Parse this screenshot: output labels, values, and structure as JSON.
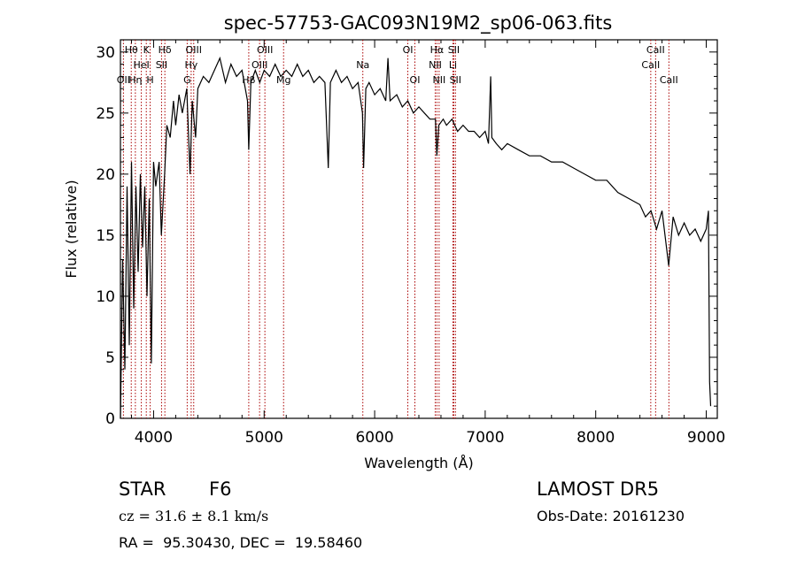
{
  "chart_data": {
    "type": "line",
    "title": "spec-57753-GAC093N19M2_sp06-063.fits",
    "xlabel": "Wavelength (Å)",
    "ylabel": "Flux (relative)",
    "xlim": [
      3700,
      9100
    ],
    "ylim": [
      0,
      31
    ],
    "xticks": [
      4000,
      5000,
      6000,
      7000,
      8000,
      9000
    ],
    "yticks": [
      0,
      5,
      10,
      15,
      20,
      25,
      30
    ],
    "series": [
      {
        "points": [
          [
            3700,
            0
          ],
          [
            3720,
            13
          ],
          [
            3740,
            4
          ],
          [
            3760,
            19
          ],
          [
            3780,
            6
          ],
          [
            3800,
            21
          ],
          [
            3820,
            9
          ],
          [
            3840,
            19
          ],
          [
            3860,
            12
          ],
          [
            3880,
            20
          ],
          [
            3900,
            14
          ],
          [
            3920,
            19
          ],
          [
            3940,
            10
          ],
          [
            3960,
            18
          ],
          [
            3980,
            4.5
          ],
          [
            4000,
            21
          ],
          [
            4020,
            19
          ],
          [
            4050,
            21
          ],
          [
            4070,
            15
          ],
          [
            4100,
            20
          ],
          [
            4120,
            24
          ],
          [
            4150,
            23
          ],
          [
            4180,
            26
          ],
          [
            4200,
            24
          ],
          [
            4230,
            26.5
          ],
          [
            4260,
            25
          ],
          [
            4300,
            27
          ],
          [
            4330,
            20
          ],
          [
            4350,
            26
          ],
          [
            4380,
            23
          ],
          [
            4400,
            27
          ],
          [
            4450,
            28
          ],
          [
            4500,
            27.5
          ],
          [
            4550,
            28.5
          ],
          [
            4600,
            29.5
          ],
          [
            4650,
            27.5
          ],
          [
            4700,
            29
          ],
          [
            4750,
            28
          ],
          [
            4800,
            28.5
          ],
          [
            4850,
            26
          ],
          [
            4861,
            22
          ],
          [
            4880,
            27.5
          ],
          [
            4920,
            28.5
          ],
          [
            4960,
            27.5
          ],
          [
            5000,
            28.5
          ],
          [
            5050,
            28
          ],
          [
            5100,
            29
          ],
          [
            5150,
            28
          ],
          [
            5200,
            28.5
          ],
          [
            5250,
            28
          ],
          [
            5300,
            29
          ],
          [
            5350,
            28
          ],
          [
            5400,
            28.5
          ],
          [
            5450,
            27.5
          ],
          [
            5500,
            28
          ],
          [
            5550,
            27.5
          ],
          [
            5580,
            20.5
          ],
          [
            5600,
            27.5
          ],
          [
            5650,
            28.5
          ],
          [
            5700,
            27.5
          ],
          [
            5750,
            28
          ],
          [
            5800,
            27
          ],
          [
            5850,
            27.5
          ],
          [
            5890,
            25
          ],
          [
            5900,
            20.5
          ],
          [
            5920,
            27
          ],
          [
            5950,
            27.5
          ],
          [
            6000,
            26.5
          ],
          [
            6050,
            27
          ],
          [
            6100,
            26
          ],
          [
            6120,
            29.5
          ],
          [
            6140,
            26
          ],
          [
            6200,
            26.5
          ],
          [
            6250,
            25.5
          ],
          [
            6300,
            26
          ],
          [
            6350,
            25
          ],
          [
            6400,
            25.5
          ],
          [
            6450,
            25
          ],
          [
            6500,
            24.5
          ],
          [
            6550,
            24.5
          ],
          [
            6563,
            21.5
          ],
          [
            6580,
            24
          ],
          [
            6620,
            24.5
          ],
          [
            6650,
            24
          ],
          [
            6700,
            24.5
          ],
          [
            6750,
            23.5
          ],
          [
            6800,
            24
          ],
          [
            6850,
            23.5
          ],
          [
            6900,
            23.5
          ],
          [
            6950,
            23
          ],
          [
            7000,
            23.5
          ],
          [
            7030,
            22.5
          ],
          [
            7050,
            28
          ],
          [
            7060,
            23
          ],
          [
            7100,
            22.5
          ],
          [
            7150,
            22
          ],
          [
            7200,
            22.5
          ],
          [
            7300,
            22
          ],
          [
            7400,
            21.5
          ],
          [
            7500,
            21.5
          ],
          [
            7600,
            21
          ],
          [
            7700,
            21
          ],
          [
            7800,
            20.5
          ],
          [
            7900,
            20
          ],
          [
            8000,
            19.5
          ],
          [
            8100,
            19.5
          ],
          [
            8200,
            18.5
          ],
          [
            8300,
            18
          ],
          [
            8400,
            17.5
          ],
          [
            8450,
            16.5
          ],
          [
            8500,
            17
          ],
          [
            8550,
            15.5
          ],
          [
            8600,
            17
          ],
          [
            8640,
            14
          ],
          [
            8660,
            12.5
          ],
          [
            8700,
            16.5
          ],
          [
            8750,
            15
          ],
          [
            8800,
            16
          ],
          [
            8850,
            15
          ],
          [
            8900,
            15.5
          ],
          [
            8950,
            14.5
          ],
          [
            9000,
            15.5
          ],
          [
            9020,
            17
          ],
          [
            9030,
            3
          ],
          [
            9040,
            1
          ]
        ]
      }
    ],
    "lines": [
      {
        "x": 3727,
        "label": "OII",
        "row": 2
      },
      {
        "x": 3798,
        "label": "Hθ",
        "row": 0
      },
      {
        "x": 3835,
        "label": "Hη",
        "row": 2
      },
      {
        "x": 3889,
        "label": "HeI",
        "row": 1
      },
      {
        "x": 3934,
        "label": "K",
        "row": 0
      },
      {
        "x": 3969,
        "label": "H",
        "row": 2
      },
      {
        "x": 4072,
        "label": "SII",
        "row": 1
      },
      {
        "x": 4102,
        "label": "Hδ",
        "row": 0
      },
      {
        "x": 4304,
        "label": "G",
        "row": 2
      },
      {
        "x": 4340,
        "label": "Hγ",
        "row": 1
      },
      {
        "x": 4363,
        "label": "OIII",
        "row": 0
      },
      {
        "x": 4861,
        "label": "Hβ",
        "row": 2
      },
      {
        "x": 4959,
        "label": "OIII",
        "row": 1
      },
      {
        "x": 5007,
        "label": "OIII",
        "row": 0
      },
      {
        "x": 5176,
        "label": "Mg",
        "row": 2
      },
      {
        "x": 5893,
        "label": "Na",
        "row": 1
      },
      {
        "x": 6300,
        "label": "OI",
        "row": 0
      },
      {
        "x": 6364,
        "label": "OI",
        "row": 2
      },
      {
        "x": 6548,
        "label": "NII",
        "row": 1
      },
      {
        "x": 6563,
        "label": "Hα",
        "row": 0
      },
      {
        "x": 6583,
        "label": "NII",
        "row": 2
      },
      {
        "x": 6708,
        "label": "Li",
        "row": 1
      },
      {
        "x": 6716,
        "label": "SII",
        "row": 0
      },
      {
        "x": 6731,
        "label": "SII",
        "row": 2
      },
      {
        "x": 8498,
        "label": "CaII",
        "row": 1
      },
      {
        "x": 8542,
        "label": "CaII",
        "row": 0
      },
      {
        "x": 8662,
        "label": "CaII",
        "row": 2
      }
    ],
    "line_color": "#aa0000",
    "grid": false
  },
  "info": {
    "class": "STAR",
    "subclass": "F6",
    "survey": "LAMOST DR5",
    "cz": "cz = 31.6 ± 8.1 km/s",
    "obs_date": "Obs-Date: 20161230",
    "radec": "RA =  95.30430, DEC =  19.58460"
  }
}
